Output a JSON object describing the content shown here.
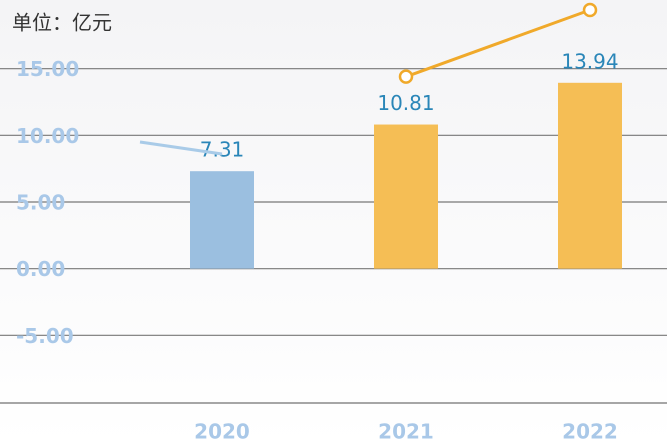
{
  "chart_data": {
    "type": "bar",
    "title": "单位：亿元",
    "categories": [
      "2020",
      "2021",
      "2022"
    ],
    "values": [
      7.31,
      10.81,
      13.94
    ],
    "colors": [
      "#9bbfe0",
      "#f5be55",
      "#f5be55"
    ],
    "line": {
      "values": [
        8.6,
        14.4,
        19.4
      ],
      "colors": [
        "#a9cbe8",
        "#f0a92a",
        "#f0a92a"
      ]
    },
    "ylim": [
      -10,
      20
    ],
    "yticks": [
      {
        "value": 15,
        "label": "15.00"
      },
      {
        "value": 10,
        "label": "10.00"
      },
      {
        "value": 5,
        "label": "5.00"
      },
      {
        "value": 0,
        "label": "0.00"
      },
      {
        "value": -5,
        "label": "-5.00"
      }
    ],
    "grid": true
  }
}
